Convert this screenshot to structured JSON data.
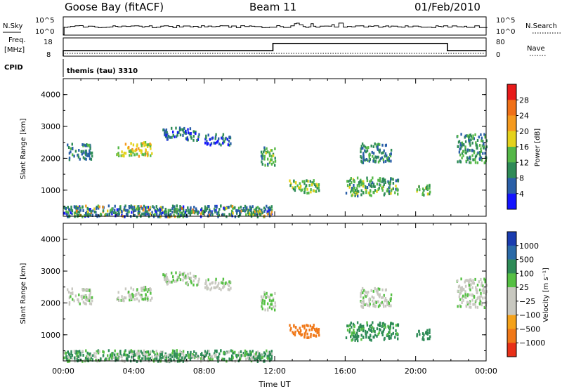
{
  "header": {
    "station": "Goose Bay (fitACF)",
    "beam": "Beam 11",
    "date": "01/Feb/2010"
  },
  "nsky_panel": {
    "left_label": "N.Sky",
    "right_label": "N.Search",
    "y_ticks": [
      "10^5",
      "10^0"
    ],
    "right_ticks": [
      "10^5",
      "10^0"
    ]
  },
  "freq_panel": {
    "left_label_top": "Freq.",
    "left_label_bottom": "[MHz]",
    "right_label": "Nave",
    "y_ticks": [
      "18",
      "8"
    ],
    "right_ticks": [
      "80",
      "0"
    ],
    "freq_steps": [
      {
        "t0": 0.0,
        "t1": 11.9,
        "mhz": 9.5
      },
      {
        "t0": 11.9,
        "t1": 21.8,
        "mhz": 15.5
      },
      {
        "t0": 21.8,
        "t1": 24.0,
        "mhz": 9.5
      }
    ]
  },
  "cpid": {
    "label": "CPID",
    "value": "themis (tau) 3310"
  },
  "x_axis": {
    "label": "Time UT",
    "ticks": [
      "00:00",
      "04:00",
      "08:00",
      "12:00",
      "16:00",
      "20:00",
      "00:00"
    ]
  },
  "power_panel": {
    "ylabel": "Slant Range [km]",
    "y_ticks": [
      "1000",
      "2000",
      "3000",
      "4000"
    ],
    "colorbar_label": "Power [dB]",
    "colorbar_ticks": [
      "4",
      "8",
      "12",
      "16",
      "20",
      "24",
      "28"
    ],
    "colors": [
      "#1414ff",
      "#2a5fa8",
      "#2e8b57",
      "#55b848",
      "#e5d21c",
      "#f59a1e",
      "#f07018",
      "#e81a1a"
    ]
  },
  "velocity_panel": {
    "ylabel": "Slant Range [km]",
    "y_ticks": [
      "1000",
      "2000",
      "3000",
      "4000"
    ],
    "colorbar_label": "Velocity  [m s⁻¹]",
    "colorbar_ticks": [
      "1000",
      "500",
      "100",
      "25",
      "−25",
      "−100",
      "−500",
      "−1000"
    ],
    "colors": [
      "#1a3cb0",
      "#2a6aa8",
      "#2e8b57",
      "#55c043",
      "#c8c8c0",
      "#c8c8c0",
      "#f5a21a",
      "#f07818",
      "#e83018"
    ]
  },
  "chart_data": {
    "type": "heatmap",
    "x_range_hours": [
      0,
      24
    ],
    "y_range_km": [
      180,
      4500
    ],
    "echo_regions": [
      {
        "t0": 0.2,
        "t1": 1.6,
        "r0": 2000,
        "r1": 2500,
        "power": 9,
        "velocity": 10
      },
      {
        "t0": 3.0,
        "t1": 5.0,
        "r0": 2100,
        "r1": 2550,
        "power": 17,
        "velocity": 15
      },
      {
        "t0": 5.6,
        "t1": 7.7,
        "r0": 2600,
        "r1": 3000,
        "power": 7,
        "velocity": 15
      },
      {
        "t0": 8.0,
        "t1": 9.5,
        "r0": 2450,
        "r1": 2800,
        "power": 6,
        "velocity": 15
      },
      {
        "t0": 11.2,
        "t1": 12.0,
        "r0": 1800,
        "r1": 2400,
        "power": 12,
        "velocity": 20
      },
      {
        "t0": 12.8,
        "t1": 14.5,
        "r0": 950,
        "r1": 1350,
        "power": 14,
        "velocity": -150
      },
      {
        "t0": 16.0,
        "t1": 19.0,
        "r0": 850,
        "r1": 1450,
        "power": 12,
        "velocity": 80
      },
      {
        "t0": 16.8,
        "t1": 18.6,
        "r0": 1900,
        "r1": 2500,
        "power": 9,
        "velocity": 10
      },
      {
        "t0": 20.0,
        "t1": 20.8,
        "r0": 850,
        "r1": 1200,
        "power": 13,
        "velocity": 120
      },
      {
        "t0": 22.3,
        "t1": 24.0,
        "r0": 1900,
        "r1": 2800,
        "power": 10,
        "velocity": 15
      },
      {
        "t0": 0.0,
        "t1": 11.8,
        "r0": 200,
        "r1": 550,
        "power": 8,
        "velocity": 60
      }
    ]
  }
}
